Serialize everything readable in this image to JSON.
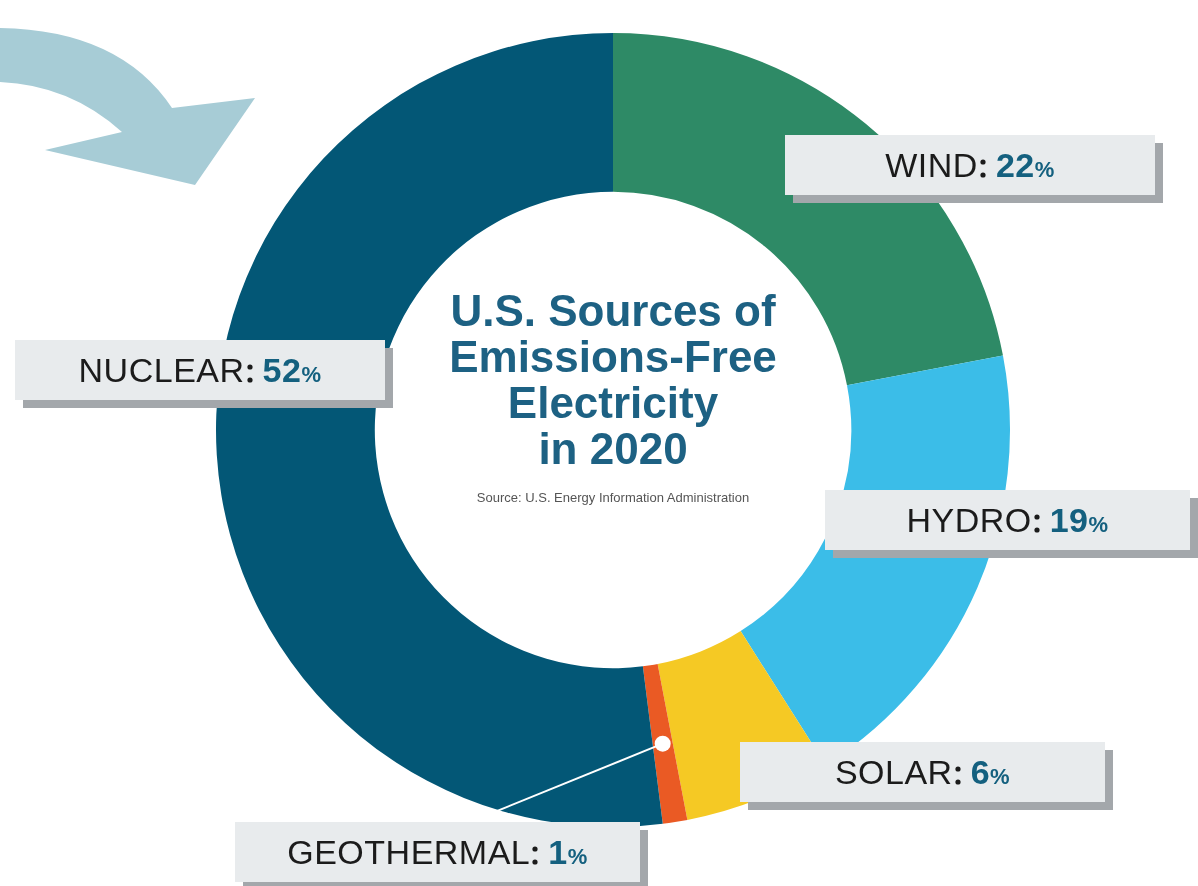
{
  "chart_data": {
    "type": "donut",
    "title": "U.S. Sources of\nEmissions-Free\nElectricity\nin 2020",
    "annotations": [
      "Source: U.S. Energy Information Administration"
    ],
    "categories": [
      "WIND",
      "HYDRO",
      "SOLAR",
      "GEOTHERMAL",
      "NUCLEAR"
    ],
    "values": [
      22,
      19,
      6,
      1,
      52
    ],
    "value_labels": [
      "22%",
      "19%",
      "6%",
      "1%",
      "52%"
    ],
    "colors": [
      "#2e8a66",
      "#3bbde8",
      "#f5c924",
      "#ea5a24",
      "#035776"
    ],
    "legend": false
  }
}
